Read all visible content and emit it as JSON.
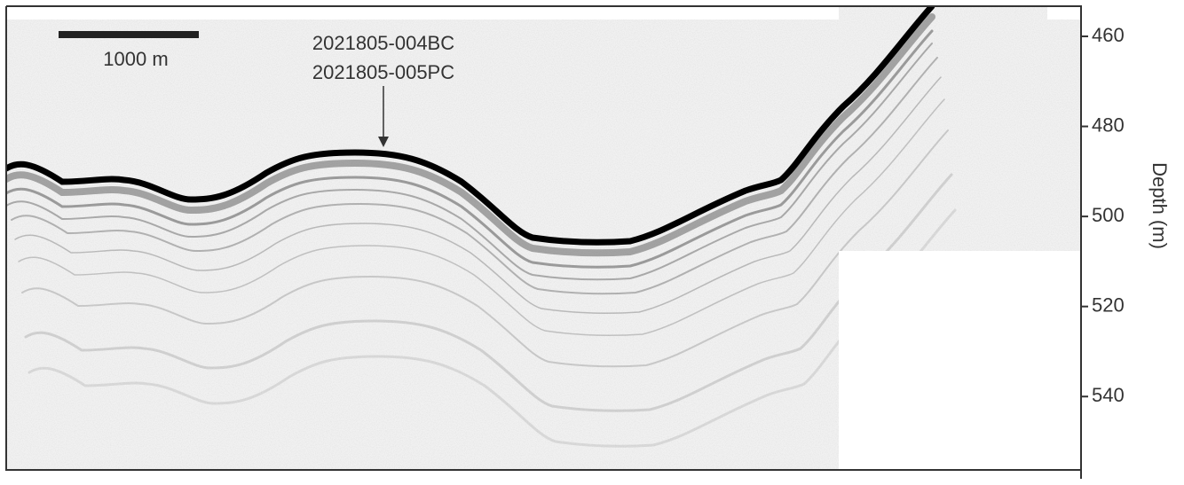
{
  "chart_data": {
    "type": "profile",
    "ylabel": "Depth (m)",
    "ylim": [
      453.3,
      556.3
    ],
    "yticks": [
      460,
      480,
      500,
      520,
      540
    ],
    "scale_bar": "1000 m",
    "annotation": [
      "2021805-004BC",
      "2021805-005PC"
    ]
  }
}
